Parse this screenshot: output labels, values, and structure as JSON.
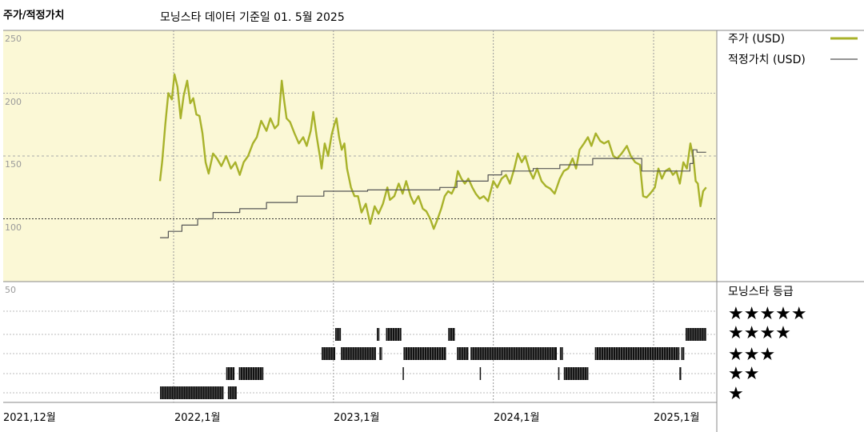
{
  "header": {
    "panel_title": "주가/적정가치",
    "subtitle": "모닝스타 데이터 기준일 01. 5월 2025"
  },
  "colors": {
    "price_line": "#a8b22a",
    "fair_value_line": "#555555",
    "top_background": "#fbf8d6",
    "grid": "#bbbbbb",
    "rating_bars": "#111111"
  },
  "legend": {
    "price": "주가 (USD)",
    "fair_value": "적정가치 (USD)",
    "rating_title": "모닝스타 등급"
  },
  "rating_rows": [
    "★★★★★",
    "★★★★",
    "★★★",
    "★★",
    "★"
  ],
  "x_ticks": [
    "2021,12월",
    "2022,1월",
    "2023,1월",
    "2024,1월",
    "2025,1월"
  ],
  "y_ticks": [
    "250",
    "200",
    "150",
    "100",
    "50"
  ],
  "chart_data": {
    "type": "line",
    "ylim": [
      50,
      250
    ],
    "series": [
      {
        "name": "주가 (USD)",
        "points": [
          [
            "2021-12-01",
            130
          ],
          [
            "2021-12-06",
            146
          ],
          [
            "2021-12-13",
            175
          ],
          [
            "2021-12-20",
            200
          ],
          [
            "2021-12-28",
            195
          ],
          [
            "2022-01-03",
            215
          ],
          [
            "2022-01-10",
            205
          ],
          [
            "2022-01-17",
            180
          ],
          [
            "2022-01-24",
            198
          ],
          [
            "2022-02-01",
            210
          ],
          [
            "2022-02-08",
            192
          ],
          [
            "2022-02-15",
            196
          ],
          [
            "2022-02-22",
            183
          ],
          [
            "2022-03-01",
            182
          ],
          [
            "2022-03-08",
            168
          ],
          [
            "2022-03-15",
            145
          ],
          [
            "2022-03-22",
            136
          ],
          [
            "2022-04-01",
            152
          ],
          [
            "2022-04-10",
            148
          ],
          [
            "2022-04-20",
            142
          ],
          [
            "2022-05-01",
            150
          ],
          [
            "2022-05-12",
            140
          ],
          [
            "2022-05-22",
            145
          ],
          [
            "2022-06-01",
            135
          ],
          [
            "2022-06-10",
            145
          ],
          [
            "2022-06-20",
            150
          ],
          [
            "2022-07-01",
            160
          ],
          [
            "2022-07-10",
            165
          ],
          [
            "2022-07-20",
            178
          ],
          [
            "2022-08-01",
            170
          ],
          [
            "2022-08-10",
            180
          ],
          [
            "2022-08-20",
            172
          ],
          [
            "2022-08-28",
            175
          ],
          [
            "2022-09-05",
            210
          ],
          [
            "2022-09-10",
            195
          ],
          [
            "2022-09-16",
            180
          ],
          [
            "2022-09-24",
            177
          ],
          [
            "2022-10-04",
            168
          ],
          [
            "2022-10-14",
            160
          ],
          [
            "2022-10-24",
            165
          ],
          [
            "2022-11-01",
            158
          ],
          [
            "2022-11-10",
            170
          ],
          [
            "2022-11-16",
            185
          ],
          [
            "2022-11-24",
            165
          ],
          [
            "2022-12-01",
            150
          ],
          [
            "2022-12-05",
            140
          ],
          [
            "2022-12-12",
            160
          ],
          [
            "2022-12-20",
            150
          ],
          [
            "2022-12-28",
            167
          ],
          [
            "2023-01-03",
            175
          ],
          [
            "2023-01-08",
            180
          ],
          [
            "2023-01-14",
            165
          ],
          [
            "2023-01-20",
            155
          ],
          [
            "2023-01-26",
            160
          ],
          [
            "2023-02-01",
            140
          ],
          [
            "2023-02-10",
            125
          ],
          [
            "2023-02-18",
            118
          ],
          [
            "2023-02-26",
            118
          ],
          [
            "2023-03-06",
            105
          ],
          [
            "2023-03-16",
            112
          ],
          [
            "2023-03-26",
            96
          ],
          [
            "2023-04-05",
            110
          ],
          [
            "2023-04-14",
            104
          ],
          [
            "2023-04-24",
            112
          ],
          [
            "2023-05-04",
            125
          ],
          [
            "2023-05-10",
            115
          ],
          [
            "2023-05-20",
            118
          ],
          [
            "2023-05-30",
            128
          ],
          [
            "2023-06-08",
            120
          ],
          [
            "2023-06-16",
            130
          ],
          [
            "2023-06-26",
            118
          ],
          [
            "2023-07-04",
            112
          ],
          [
            "2023-07-14",
            118
          ],
          [
            "2023-07-24",
            108
          ],
          [
            "2023-08-01",
            106
          ],
          [
            "2023-08-10",
            100
          ],
          [
            "2023-08-18",
            92
          ],
          [
            "2023-08-25",
            98
          ],
          [
            "2023-09-04",
            108
          ],
          [
            "2023-09-12",
            118
          ],
          [
            "2023-09-20",
            122
          ],
          [
            "2023-09-28",
            120
          ],
          [
            "2023-10-06",
            126
          ],
          [
            "2023-10-12",
            138
          ],
          [
            "2023-10-20",
            132
          ],
          [
            "2023-10-28",
            128
          ],
          [
            "2023-11-05",
            132
          ],
          [
            "2023-11-14",
            125
          ],
          [
            "2023-11-22",
            120
          ],
          [
            "2023-12-01",
            116
          ],
          [
            "2023-12-10",
            118
          ],
          [
            "2023-12-20",
            114
          ],
          [
            "2024-01-01",
            130
          ],
          [
            "2024-01-10",
            125
          ],
          [
            "2024-01-20",
            132
          ],
          [
            "2024-01-30",
            135
          ],
          [
            "2024-02-08",
            128
          ],
          [
            "2024-02-18",
            140
          ],
          [
            "2024-02-26",
            152
          ],
          [
            "2024-03-06",
            145
          ],
          [
            "2024-03-14",
            150
          ],
          [
            "2024-03-24",
            138
          ],
          [
            "2024-04-01",
            132
          ],
          [
            "2024-04-10",
            140
          ],
          [
            "2024-04-20",
            130
          ],
          [
            "2024-04-30",
            126
          ],
          [
            "2024-05-10",
            124
          ],
          [
            "2024-05-20",
            120
          ],
          [
            "2024-06-01",
            132
          ],
          [
            "2024-06-10",
            138
          ],
          [
            "2024-06-20",
            140
          ],
          [
            "2024-06-30",
            148
          ],
          [
            "2024-07-08",
            140
          ],
          [
            "2024-07-16",
            155
          ],
          [
            "2024-07-26",
            160
          ],
          [
            "2024-08-04",
            165
          ],
          [
            "2024-08-12",
            158
          ],
          [
            "2024-08-22",
            168
          ],
          [
            "2024-09-01",
            162
          ],
          [
            "2024-09-10",
            160
          ],
          [
            "2024-09-20",
            162
          ],
          [
            "2024-10-01",
            150
          ],
          [
            "2024-10-10",
            148
          ],
          [
            "2024-10-20",
            152
          ],
          [
            "2024-11-01",
            158
          ],
          [
            "2024-11-10",
            150
          ],
          [
            "2024-11-20",
            145
          ],
          [
            "2024-12-01",
            143
          ],
          [
            "2024-12-08",
            118
          ],
          [
            "2024-12-16",
            117
          ],
          [
            "2024-12-24",
            120
          ],
          [
            "2025-01-04",
            125
          ],
          [
            "2025-01-12",
            140
          ],
          [
            "2025-01-20",
            132
          ],
          [
            "2025-01-28",
            138
          ],
          [
            "2025-02-06",
            140
          ],
          [
            "2025-02-14",
            135
          ],
          [
            "2025-02-22",
            138
          ],
          [
            "2025-03-02",
            128
          ],
          [
            "2025-03-10",
            145
          ],
          [
            "2025-03-18",
            140
          ],
          [
            "2025-03-26",
            160
          ],
          [
            "2025-04-02",
            148
          ],
          [
            "2025-04-07",
            130
          ],
          [
            "2025-04-12",
            128
          ],
          [
            "2025-04-18",
            110
          ],
          [
            "2025-04-24",
            122
          ],
          [
            "2025-05-01",
            125
          ]
        ]
      },
      {
        "name": "적정가치 (USD)",
        "points": [
          [
            "2021-12-01",
            85
          ],
          [
            "2021-12-20",
            85
          ],
          [
            "2021-12-20",
            90
          ],
          [
            "2022-01-20",
            90
          ],
          [
            "2022-01-20",
            95
          ],
          [
            "2022-02-25",
            95
          ],
          [
            "2022-02-25",
            100
          ],
          [
            "2022-04-01",
            100
          ],
          [
            "2022-04-01",
            105
          ],
          [
            "2022-06-01",
            105
          ],
          [
            "2022-06-01",
            108
          ],
          [
            "2022-08-01",
            108
          ],
          [
            "2022-08-01",
            113
          ],
          [
            "2022-10-10",
            113
          ],
          [
            "2022-10-10",
            118
          ],
          [
            "2022-12-10",
            118
          ],
          [
            "2022-12-10",
            122
          ],
          [
            "2023-03-20",
            122
          ],
          [
            "2023-03-20",
            123
          ],
          [
            "2023-09-01",
            123
          ],
          [
            "2023-09-01",
            125
          ],
          [
            "2023-10-10",
            125
          ],
          [
            "2023-10-10",
            130
          ],
          [
            "2023-12-20",
            130
          ],
          [
            "2023-12-20",
            135
          ],
          [
            "2024-01-20",
            135
          ],
          [
            "2024-01-20",
            138
          ],
          [
            "2024-04-01",
            138
          ],
          [
            "2024-04-01",
            140
          ],
          [
            "2024-06-01",
            140
          ],
          [
            "2024-06-01",
            143
          ],
          [
            "2024-08-15",
            143
          ],
          [
            "2024-08-15",
            148
          ],
          [
            "2024-12-05",
            148
          ],
          [
            "2024-12-05",
            138
          ],
          [
            "2025-03-25",
            138
          ],
          [
            "2025-03-25",
            144
          ],
          [
            "2025-04-01",
            144
          ],
          [
            "2025-04-01",
            155
          ],
          [
            "2025-04-10",
            155
          ],
          [
            "2025-04-10",
            153
          ],
          [
            "2025-05-01",
            153
          ]
        ]
      }
    ],
    "rating_segments": [
      {
        "stars": 4,
        "start": "2023-01-05",
        "end": "2023-01-18"
      },
      {
        "stars": 4,
        "start": "2023-04-10",
        "end": "2023-04-16"
      },
      {
        "stars": 4,
        "start": "2023-05-01",
        "end": "2023-06-05"
      },
      {
        "stars": 4,
        "start": "2023-09-20",
        "end": "2023-10-05"
      },
      {
        "stars": 4,
        "start": "2025-03-15",
        "end": "2025-05-01"
      },
      {
        "stars": 3,
        "start": "2022-12-05",
        "end": "2023-01-05"
      },
      {
        "stars": 3,
        "start": "2023-01-18",
        "end": "2023-04-08"
      },
      {
        "stars": 3,
        "start": "2023-04-16",
        "end": "2023-04-22"
      },
      {
        "stars": 3,
        "start": "2023-06-10",
        "end": "2023-09-15"
      },
      {
        "stars": 3,
        "start": "2023-10-10",
        "end": "2023-11-05"
      },
      {
        "stars": 3,
        "start": "2023-11-10",
        "end": "2024-05-25"
      },
      {
        "stars": 3,
        "start": "2024-06-01",
        "end": "2024-06-08"
      },
      {
        "stars": 3,
        "start": "2024-08-20",
        "end": "2025-03-01"
      },
      {
        "stars": 3,
        "start": "2025-03-05",
        "end": "2025-03-12"
      },
      {
        "stars": 2,
        "start": "2022-05-01",
        "end": "2022-05-20"
      },
      {
        "stars": 2,
        "start": "2022-05-30",
        "end": "2022-07-25"
      },
      {
        "stars": 2,
        "start": "2023-06-08",
        "end": "2023-06-10"
      },
      {
        "stars": 2,
        "start": "2023-12-01",
        "end": "2023-12-03"
      },
      {
        "stars": 2,
        "start": "2024-05-28",
        "end": "2024-05-31"
      },
      {
        "stars": 2,
        "start": "2024-06-10",
        "end": "2024-08-05"
      },
      {
        "stars": 2,
        "start": "2025-03-01",
        "end": "2025-03-05"
      },
      {
        "stars": 1,
        "start": "2021-12-01",
        "end": "2022-04-25"
      },
      {
        "stars": 1,
        "start": "2022-05-05",
        "end": "2022-05-25"
      }
    ]
  }
}
